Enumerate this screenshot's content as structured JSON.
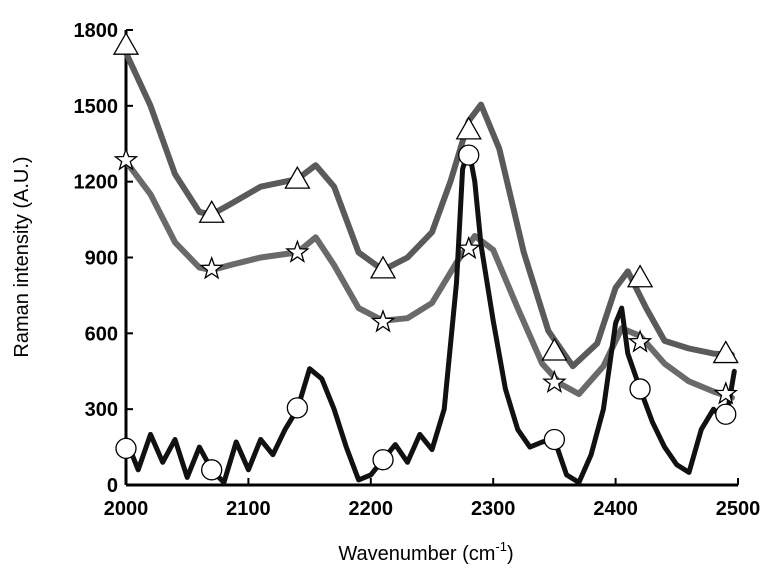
{
  "chart_data": {
    "type": "line",
    "xlabel": "Wavenumber (cm",
    "xlabel_sup": "-1",
    "xlabel_end": ")",
    "ylabel": "Raman intensity (A.U.)",
    "xlim": [
      2000,
      2500
    ],
    "ylim": [
      0,
      1800
    ],
    "xticks": [
      2000,
      2100,
      2200,
      2300,
      2400,
      2500
    ],
    "yticks": [
      0,
      300,
      600,
      900,
      1200,
      1500,
      1800
    ],
    "grid": false,
    "series": [
      {
        "marker": "triangle",
        "color": "#5a5a5a",
        "x": [
          2000,
          2020,
          2040,
          2060,
          2070,
          2085,
          2110,
          2140,
          2155,
          2170,
          2190,
          2210,
          2230,
          2250,
          2265,
          2280,
          2290,
          2305,
          2325,
          2345,
          2365,
          2385,
          2400,
          2410,
          2425,
          2440,
          2460,
          2480,
          2495
        ],
        "y": [
          1710,
          1500,
          1230,
          1080,
          1070,
          1110,
          1180,
          1210,
          1265,
          1180,
          920,
          850,
          900,
          1000,
          1200,
          1440,
          1505,
          1330,
          920,
          610,
          470,
          560,
          780,
          845,
          700,
          570,
          540,
          520,
          515
        ]
      },
      {
        "marker": "star",
        "color": "#6a6a6a",
        "x": [
          2000,
          2020,
          2040,
          2060,
          2070,
          2085,
          2110,
          2140,
          2155,
          2170,
          2190,
          2210,
          2230,
          2250,
          2270,
          2285,
          2300,
          2320,
          2340,
          2355,
          2370,
          2390,
          2405,
          2420,
          2440,
          2460,
          2480,
          2495
        ],
        "y": [
          1280,
          1150,
          960,
          860,
          850,
          870,
          900,
          920,
          980,
          870,
          700,
          650,
          660,
          720,
          880,
          985,
          930,
          700,
          480,
          400,
          360,
          470,
          620,
          590,
          480,
          410,
          370,
          345
        ]
      },
      {
        "marker": "circle",
        "color": "#111111",
        "x": [
          2000,
          2010,
          2020,
          2030,
          2040,
          2050,
          2060,
          2070,
          2080,
          2090,
          2100,
          2110,
          2120,
          2130,
          2140,
          2150,
          2160,
          2170,
          2180,
          2190,
          2200,
          2210,
          2220,
          2230,
          2240,
          2250,
          2260,
          2270,
          2275,
          2280,
          2285,
          2290,
          2300,
          2310,
          2320,
          2330,
          2340,
          2350,
          2360,
          2370,
          2380,
          2390,
          2400,
          2405,
          2410,
          2420,
          2430,
          2440,
          2450,
          2460,
          2470,
          2480,
          2490,
          2497
        ],
        "y": [
          180,
          60,
          200,
          90,
          180,
          30,
          150,
          60,
          10,
          170,
          60,
          180,
          120,
          220,
          300,
          460,
          420,
          300,
          150,
          20,
          40,
          100,
          160,
          90,
          200,
          140,
          300,
          800,
          1250,
          1330,
          1200,
          950,
          650,
          380,
          220,
          150,
          170,
          180,
          40,
          10,
          120,
          300,
          640,
          700,
          520,
          380,
          250,
          150,
          80,
          50,
          220,
          300,
          250,
          450
        ]
      }
    ],
    "markers": [
      {
        "series": 0,
        "points": [
          [
            2000,
            1740
          ],
          [
            2070,
            1075
          ],
          [
            2140,
            1210
          ],
          [
            2210,
            855
          ],
          [
            2280,
            1405
          ],
          [
            2350,
            530
          ],
          [
            2420,
            820
          ],
          [
            2490,
            520
          ]
        ]
      },
      {
        "series": 1,
        "points": [
          [
            2000,
            1285
          ],
          [
            2070,
            855
          ],
          [
            2140,
            920
          ],
          [
            2210,
            645
          ],
          [
            2280,
            935
          ],
          [
            2350,
            405
          ],
          [
            2420,
            565
          ],
          [
            2490,
            360
          ]
        ]
      },
      {
        "series": 2,
        "points": [
          [
            2000,
            145
          ],
          [
            2070,
            60
          ],
          [
            2140,
            305
          ],
          [
            2210,
            100
          ],
          [
            2280,
            1305
          ],
          [
            2350,
            180
          ],
          [
            2420,
            380
          ],
          [
            2490,
            280
          ]
        ]
      }
    ]
  }
}
